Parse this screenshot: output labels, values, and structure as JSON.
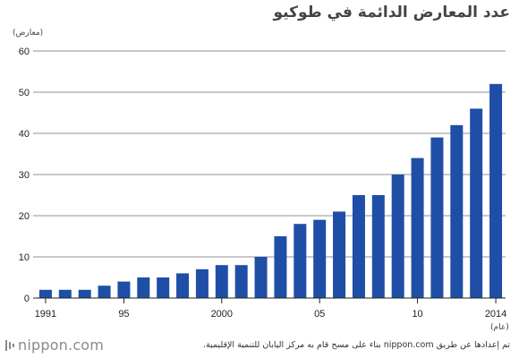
{
  "title": "عدد المعارض الدائمة في طوكيو",
  "logo_text": "nippon.com",
  "source_note": "تم إعدادها عن طريق nippon.com بناء على مسح قام به مركز اليابان للتنمية الإقليمية.",
  "colors": {
    "bar": "#1f4ea7",
    "axis": "#222222",
    "grid": "#222222"
  },
  "chart_data": {
    "type": "bar",
    "title": "عدد المعارض الدائمة في طوكيو",
    "ylabel": "(معارض)",
    "xlabel": "(عام)",
    "ylim": [
      0,
      60
    ],
    "yticks": [
      0,
      10,
      20,
      30,
      40,
      50,
      60
    ],
    "grid": true,
    "categories": [
      "1991",
      "1992",
      "1993",
      "1994",
      "1995",
      "1996",
      "1997",
      "1998",
      "1999",
      "2000",
      "2001",
      "2002",
      "2003",
      "2004",
      "2005",
      "2006",
      "2007",
      "2008",
      "2009",
      "2010",
      "2011",
      "2012",
      "2013",
      "2014"
    ],
    "x_tick_labels": [
      {
        "category": "1991",
        "label": "1991"
      },
      {
        "category": "1995",
        "label": "95"
      },
      {
        "category": "2000",
        "label": "2000"
      },
      {
        "category": "2005",
        "label": "05"
      },
      {
        "category": "2010",
        "label": "10"
      },
      {
        "category": "2014",
        "label": "2014"
      }
    ],
    "values": [
      2,
      2,
      2,
      3,
      4,
      5,
      5,
      6,
      7,
      8,
      8,
      10,
      15,
      18,
      19,
      21,
      25,
      25,
      30,
      34,
      39,
      42,
      46,
      52
    ]
  }
}
